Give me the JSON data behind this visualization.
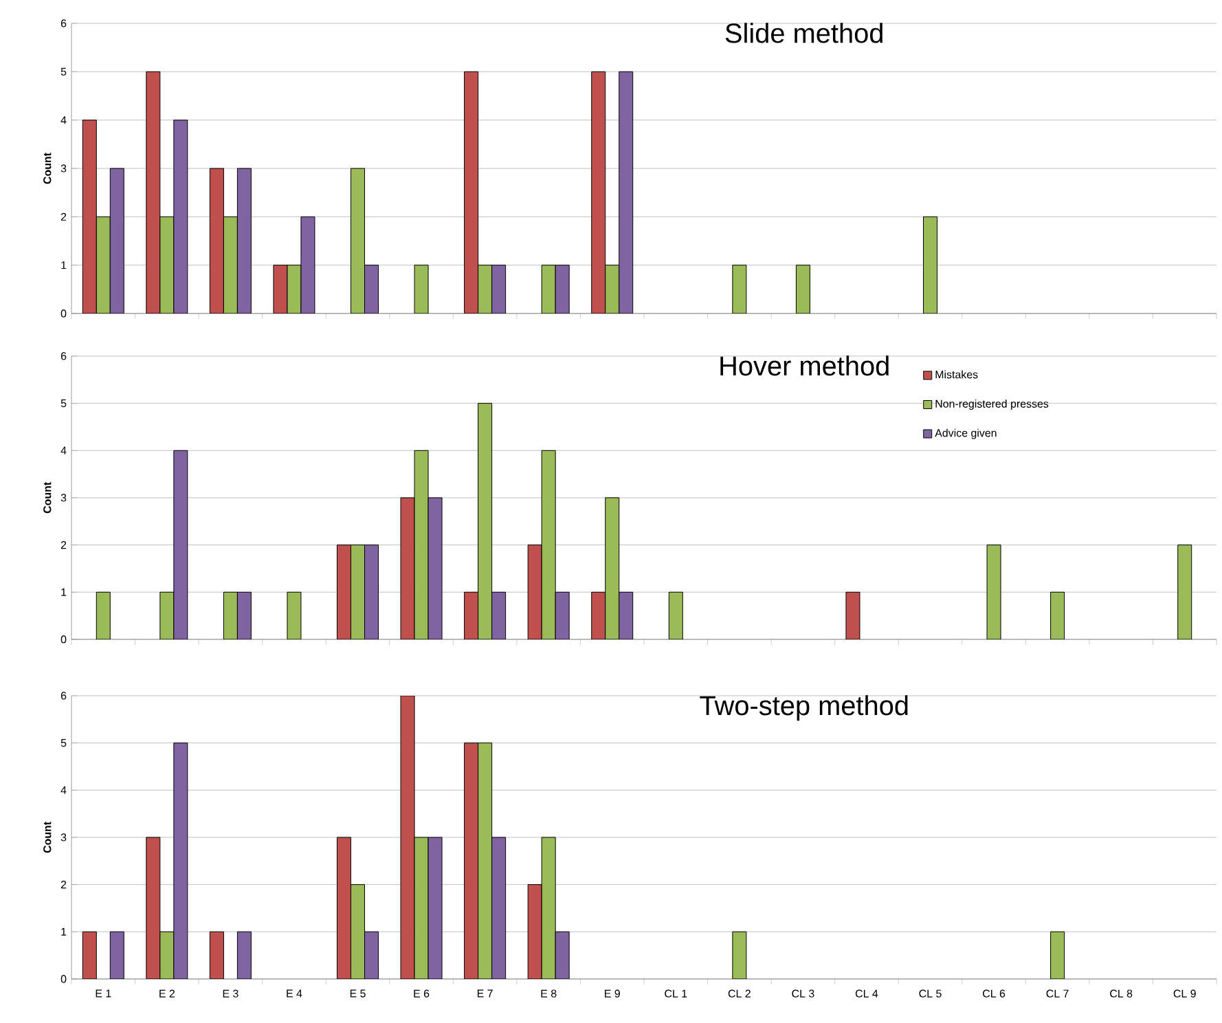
{
  "chart_data": [
    {
      "type": "bar",
      "title": "Slide method",
      "ylabel": "Count",
      "categories": [
        null,
        null,
        null,
        null,
        null,
        null,
        null,
        null,
        null,
        null,
        null,
        null,
        null,
        null,
        null,
        null,
        null,
        null
      ],
      "ylim": [
        0,
        6
      ],
      "yticks": [
        0,
        1,
        2,
        3,
        4,
        5,
        6
      ],
      "grid": "y",
      "legend": false,
      "tick_labels": "y",
      "series": [
        {
          "color": "#c0504d",
          "values": [
            4,
            5,
            3,
            1,
            null,
            null,
            5,
            null,
            5,
            null,
            null,
            null,
            null,
            null,
            null,
            null,
            null,
            null
          ]
        },
        {
          "color": "#9bbb59",
          "values": [
            2,
            2,
            2,
            1,
            3,
            1,
            1,
            1,
            1,
            null,
            1,
            1,
            null,
            2,
            null,
            null,
            null,
            null
          ]
        },
        {
          "color": "#8064a2",
          "values": [
            3,
            4,
            3,
            2,
            1,
            null,
            1,
            1,
            5,
            null,
            null,
            null,
            null,
            null,
            null,
            null,
            null,
            null
          ]
        }
      ]
    },
    {
      "type": "bar",
      "title": "Hover method",
      "ylabel": "Count",
      "categories": [
        null,
        null,
        null,
        null,
        null,
        null,
        null,
        null,
        null,
        null,
        null,
        null,
        null,
        null,
        null,
        null,
        null,
        null
      ],
      "ylim": [
        0,
        6
      ],
      "yticks": [
        0,
        1,
        2,
        3,
        4,
        5,
        6
      ],
      "grid": "y",
      "legend": "top right",
      "tick_labels": "y",
      "series": [
        {
          "name": "Mistakes",
          "color": "#c0504d",
          "values": [
            null,
            null,
            null,
            null,
            2,
            3,
            1,
            2,
            1,
            null,
            null,
            null,
            1,
            null,
            null,
            null,
            null,
            null
          ]
        },
        {
          "name": "Non-registered presses",
          "color": "#9bbb59",
          "values": [
            1,
            1,
            1,
            1,
            2,
            4,
            5,
            4,
            3,
            1,
            null,
            null,
            null,
            null,
            2,
            1,
            null,
            2
          ]
        },
        {
          "name": "Advice given",
          "color": "#8064a2",
          "values": [
            null,
            4,
            1,
            null,
            2,
            3,
            1,
            1,
            1,
            null,
            null,
            null,
            null,
            null,
            null,
            null,
            null,
            null
          ]
        }
      ]
    },
    {
      "type": "bar",
      "title": "Two-step  method",
      "ylabel": "Count",
      "categories": [
        "E 1",
        "E 2",
        "E 3",
        "E 4",
        "E 5",
        "E 6",
        "E 7",
        "E 8",
        "E 9",
        "CL 1",
        "CL 2",
        "CL 3",
        "CL 4",
        "CL 5",
        "CL 6",
        "CL 7",
        "CL 8",
        "CL 9"
      ],
      "ylim": [
        0,
        6
      ],
      "yticks": [
        0,
        1,
        2,
        3,
        4,
        5,
        6
      ],
      "grid": "y",
      "legend": false,
      "series": [
        {
          "color": "#c0504d",
          "values": [
            1,
            3,
            1,
            null,
            3,
            6,
            5,
            2,
            null,
            null,
            null,
            null,
            null,
            null,
            null,
            null,
            null,
            null
          ]
        },
        {
          "color": "#9bbb59",
          "values": [
            null,
            1,
            null,
            null,
            2,
            3,
            5,
            3,
            null,
            null,
            1,
            null,
            null,
            null,
            null,
            1,
            null,
            null
          ]
        },
        {
          "color": "#8064a2",
          "values": [
            1,
            5,
            1,
            null,
            1,
            3,
            3,
            1,
            null,
            null,
            null,
            null,
            null,
            null,
            null,
            null,
            null,
            null
          ]
        }
      ]
    }
  ]
}
